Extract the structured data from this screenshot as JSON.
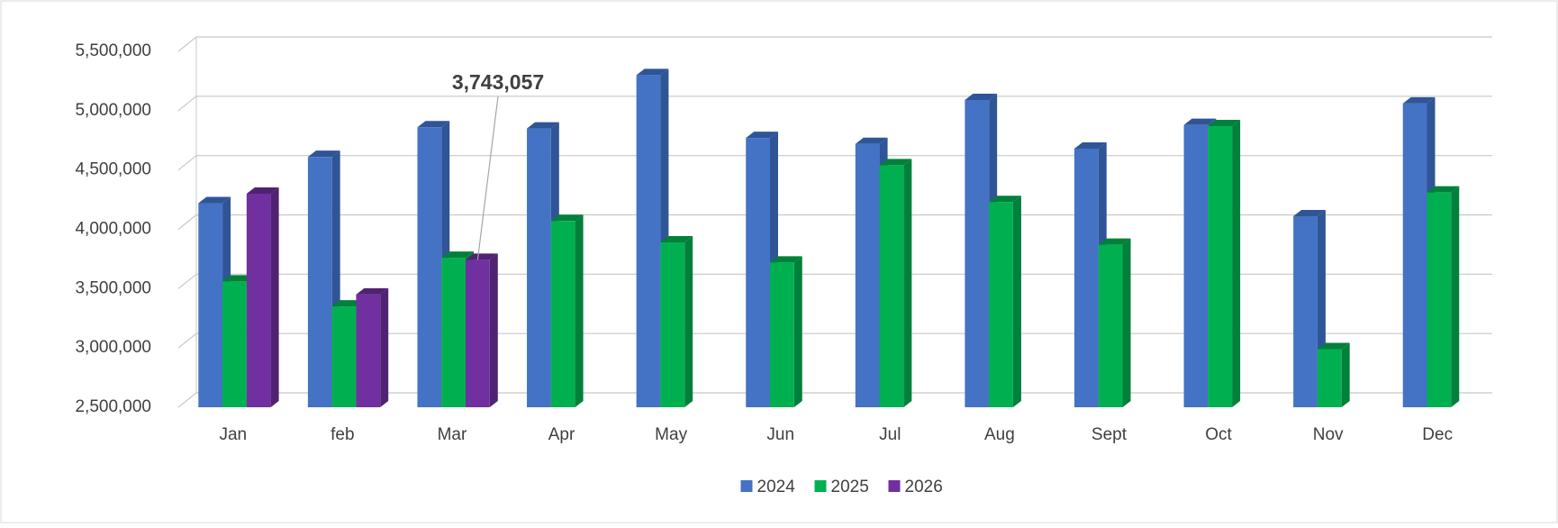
{
  "chart_data": {
    "type": "bar3d",
    "categories": [
      "Jan",
      "feb",
      "Mar",
      "Apr",
      "May",
      "Jun",
      "Jul",
      "Aug",
      "Sept",
      "Oct",
      "Nov",
      "Dec"
    ],
    "series": [
      {
        "name": "2024",
        "color": "#4472c4",
        "side": "#2f5597",
        "values": [
          4220000,
          4610000,
          4860000,
          4850000,
          5300000,
          4770000,
          4720000,
          5090000,
          4680000,
          4880000,
          4110000,
          5060000
        ]
      },
      {
        "name": "2025",
        "color": "#00b050",
        "side": "#00803a",
        "values": [
          3560000,
          3350000,
          3760000,
          4070000,
          3890000,
          3720000,
          4540000,
          4230000,
          3870000,
          4870000,
          2990000,
          4310000
        ]
      },
      {
        "name": "2026",
        "color": "#7030a0",
        "side": "#4f2272",
        "values": [
          4300000,
          3450000,
          3743057,
          null,
          null,
          null,
          null,
          null,
          null,
          null,
          null,
          null
        ],
        "value_labels": [
          null,
          null,
          "3,743,057",
          null,
          null,
          null,
          null,
          null,
          null,
          null,
          null,
          null
        ]
      }
    ],
    "ylim": [
      2500000,
      5500000
    ],
    "yticks": [
      {
        "value": 2500000,
        "label": "2,500,000"
      },
      {
        "value": 3000000,
        "label": "3,000,000"
      },
      {
        "value": 3500000,
        "label": "3,500,000"
      },
      {
        "value": 4000000,
        "label": "4,000,000"
      },
      {
        "value": 4500000,
        "label": "4,500,000"
      },
      {
        "value": 5000000,
        "label": "5,000,000"
      },
      {
        "value": 5500000,
        "label": "5,500,000"
      }
    ],
    "grid": true,
    "legend": "bottom"
  }
}
